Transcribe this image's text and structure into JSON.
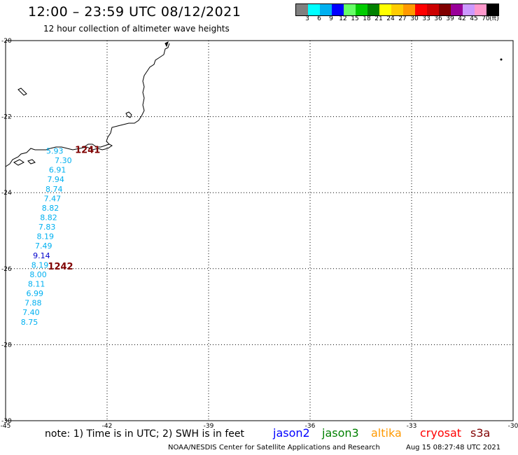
{
  "header": {
    "title": "12:00 – 23:59 UTC 08/12/2021",
    "subtitle": "12 hour collection of altimeter wave heights"
  },
  "colorbar": {
    "colors": [
      "#808080",
      "#00ffff",
      "#00b0f0",
      "#0000ff",
      "#66ff66",
      "#00cc00",
      "#008000",
      "#ffff00",
      "#ffcc00",
      "#ff9900",
      "#ff0000",
      "#cc0000",
      "#800000",
      "#990099",
      "#cc99ff",
      "#ff99cc",
      "#000000"
    ],
    "ticks": [
      "3",
      "6",
      "9",
      "12",
      "15",
      "18",
      "21",
      "24",
      "27",
      "30",
      "33",
      "36",
      "39",
      "42",
      "45",
      "70",
      "(ft)"
    ]
  },
  "map": {
    "x_ticks": [
      "-45",
      "-42",
      "-39",
      "-36",
      "-33",
      "-30"
    ],
    "y_ticks": [
      "-20",
      "-22",
      "-24",
      "-26",
      "-28",
      "-30"
    ],
    "lon_range": [
      -45,
      -30
    ],
    "lat_range": [
      -30,
      -20
    ],
    "track_labels": [
      {
        "text": "1241",
        "lon": -42.95,
        "lat": -22.88,
        "color": "#800000"
      },
      {
        "text": "1242",
        "lon": -43.75,
        "lat": -25.95,
        "color": "#800000"
      }
    ],
    "wave_heights": [
      {
        "v": "5.93",
        "lon": -43.8,
        "lat": -22.9,
        "color": "#00b0f0"
      },
      {
        "v": "7.30",
        "lon": -43.55,
        "lat": -23.15,
        "color": "#00b0f0"
      },
      {
        "v": "6.91",
        "lon": -43.72,
        "lat": -23.4,
        "color": "#00b0f0"
      },
      {
        "v": "7.94",
        "lon": -43.77,
        "lat": -23.65,
        "color": "#00b0f0"
      },
      {
        "v": "8.74",
        "lon": -43.82,
        "lat": -23.9,
        "color": "#00b0f0"
      },
      {
        "v": "7.47",
        "lon": -43.87,
        "lat": -24.15,
        "color": "#00b0f0"
      },
      {
        "v": "8.82",
        "lon": -43.93,
        "lat": -24.4,
        "color": "#00b0f0"
      },
      {
        "v": "8.82",
        "lon": -43.98,
        "lat": -24.65,
        "color": "#00b0f0"
      },
      {
        "v": "7.83",
        "lon": -44.03,
        "lat": -24.9,
        "color": "#00b0f0"
      },
      {
        "v": "8.19",
        "lon": -44.08,
        "lat": -25.15,
        "color": "#00b0f0"
      },
      {
        "v": "7.49",
        "lon": -44.13,
        "lat": -25.4,
        "color": "#00b0f0"
      },
      {
        "v": "9.14",
        "lon": -44.19,
        "lat": -25.65,
        "color": "#0000cc"
      },
      {
        "v": "8.19",
        "lon": -44.24,
        "lat": -25.9,
        "color": "#00b0f0"
      },
      {
        "v": "8.00",
        "lon": -44.29,
        "lat": -26.15,
        "color": "#00b0f0"
      },
      {
        "v": "8.11",
        "lon": -44.34,
        "lat": -26.4,
        "color": "#00b0f0"
      },
      {
        "v": "6.99",
        "lon": -44.39,
        "lat": -26.65,
        "color": "#00b0f0"
      },
      {
        "v": "7.88",
        "lon": -44.44,
        "lat": -26.9,
        "color": "#00b0f0"
      },
      {
        "v": "7.40",
        "lon": -44.5,
        "lat": -27.15,
        "color": "#00b0f0"
      },
      {
        "v": "8.75",
        "lon": -44.55,
        "lat": -27.4,
        "color": "#00b0f0"
      }
    ]
  },
  "note": "note: 1) Time is in UTC; 2) SWH is in feet",
  "satellites": [
    {
      "name": "jason2",
      "color": "#0000ff"
    },
    {
      "name": "jason3",
      "color": "#008000"
    },
    {
      "name": "altika",
      "color": "#ff9900"
    },
    {
      "name": "cryosat",
      "color": "#ff0000"
    },
    {
      "name": "s3a",
      "color": "#800000"
    }
  ],
  "footer": {
    "credit": "NOAA/NESDIS Center for Satellite Applications and Research",
    "generated": "Aug 15 08:27:48 UTC 2021"
  }
}
